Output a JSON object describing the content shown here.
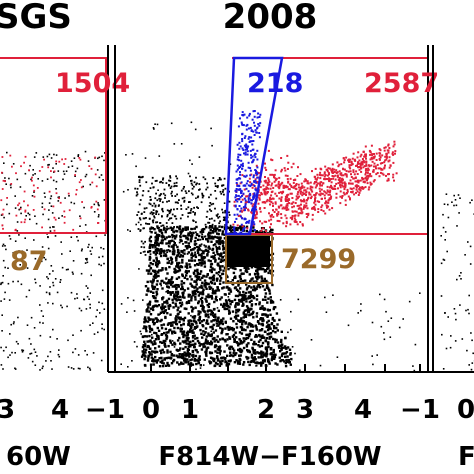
{
  "chart_data": {
    "type": "scatter",
    "panels": [
      {
        "title": "SGS",
        "xlabel": "60W",
        "tick_labels": [
          "3",
          "4",
          "−1"
        ],
        "region_counts": [
          {
            "label": "1504",
            "color": "#e0203a"
          },
          {
            "label": "87",
            "color": "#9a6a2a"
          }
        ]
      },
      {
        "title": "2008",
        "xlabel": "F814W−F160W",
        "xlim": [
          -1,
          5
        ],
        "tick_labels": [
          "0",
          "1",
          "2",
          "3",
          "4",
          "−1"
        ],
        "region_counts": [
          {
            "label": "218",
            "color": "#1a1ae0"
          },
          {
            "label": "2587",
            "color": "#e0203a"
          },
          {
            "label": "7299",
            "color": "#9a6a2a"
          }
        ]
      },
      {
        "title": "",
        "xlabel": "F",
        "tick_labels": [
          "0"
        ],
        "region_counts": []
      }
    ],
    "series": [
      {
        "name": "",
        "color": "#000000"
      },
      {
        "name": "",
        "color": "#e0203a"
      },
      {
        "name": "",
        "color": "#1a1ae0"
      }
    ]
  }
}
